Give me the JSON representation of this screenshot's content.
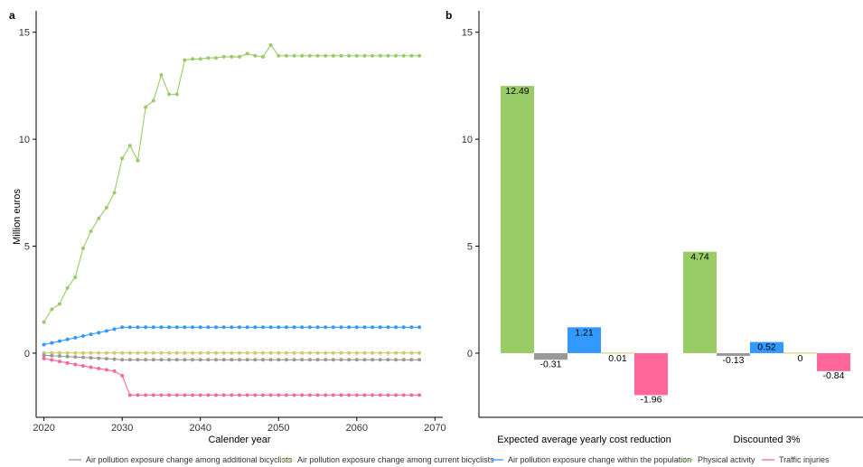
{
  "chart_data": [
    {
      "panel": "a",
      "type": "line",
      "xlabel": "Calender year",
      "ylabel": "Million euros",
      "xlim": [
        2019,
        2071
      ],
      "ylim": [
        -3,
        16
      ],
      "xticks": [
        2020,
        2030,
        2040,
        2050,
        2060,
        2070
      ],
      "yticks": [
        0,
        5,
        10,
        15
      ],
      "x": [
        2020,
        2021,
        2022,
        2023,
        2024,
        2025,
        2026,
        2027,
        2028,
        2029,
        2030,
        2031,
        2032,
        2033,
        2034,
        2035,
        2036,
        2037,
        2038,
        2039,
        2040,
        2041,
        2042,
        2043,
        2044,
        2045,
        2046,
        2047,
        2048,
        2049,
        2050,
        2051,
        2052,
        2053,
        2054,
        2055,
        2056,
        2057,
        2058,
        2059,
        2060,
        2061,
        2062,
        2063,
        2064,
        2065,
        2066,
        2067,
        2068
      ],
      "series": [
        {
          "name": "Physical activity",
          "color": "#99cc66",
          "values": [
            1.45,
            2.05,
            2.3,
            3.05,
            3.55,
            4.9,
            5.7,
            6.3,
            6.8,
            7.5,
            9.1,
            9.7,
            9.0,
            11.5,
            11.8,
            13.0,
            12.1,
            12.1,
            13.7,
            13.75,
            13.75,
            13.8,
            13.8,
            13.85,
            13.85,
            13.85,
            14.0,
            13.9,
            13.85,
            14.4,
            13.9,
            13.9,
            13.9,
            13.9,
            13.9,
            13.9,
            13.9,
            13.9,
            13.9,
            13.9,
            13.9,
            13.9,
            13.9,
            13.9,
            13.9,
            13.9,
            13.9,
            13.9,
            13.9
          ]
        },
        {
          "name": "Air pollution exposure change within the population",
          "color": "#3399ff",
          "values": [
            0.4,
            0.48,
            0.56,
            0.64,
            0.72,
            0.8,
            0.88,
            0.96,
            1.04,
            1.12,
            1.21,
            1.21,
            1.21,
            1.21,
            1.21,
            1.21,
            1.21,
            1.21,
            1.21,
            1.21,
            1.21,
            1.21,
            1.21,
            1.21,
            1.21,
            1.21,
            1.21,
            1.21,
            1.21,
            1.21,
            1.21,
            1.21,
            1.21,
            1.21,
            1.21,
            1.21,
            1.21,
            1.21,
            1.21,
            1.21,
            1.21,
            1.21,
            1.21,
            1.21,
            1.21,
            1.21,
            1.21,
            1.21,
            1.21
          ]
        },
        {
          "name": "Air pollution exposure change among current bicyclists",
          "color": "#cccc66",
          "values": [
            0.01,
            0.01,
            0.01,
            0.01,
            0.01,
            0.01,
            0.01,
            0.01,
            0.01,
            0.01,
            0.01,
            0.01,
            0.01,
            0.01,
            0.01,
            0.01,
            0.01,
            0.01,
            0.01,
            0.01,
            0.01,
            0.01,
            0.01,
            0.01,
            0.01,
            0.01,
            0.01,
            0.01,
            0.01,
            0.01,
            0.01,
            0.01,
            0.01,
            0.01,
            0.01,
            0.01,
            0.01,
            0.01,
            0.01,
            0.01,
            0.01,
            0.01,
            0.01,
            0.01,
            0.01,
            0.01,
            0.01,
            0.01,
            0.01
          ]
        },
        {
          "name": "Air pollution exposure change among additional bicyclists",
          "color": "#999999",
          "values": [
            -0.1,
            -0.12,
            -0.14,
            -0.16,
            -0.18,
            -0.2,
            -0.22,
            -0.24,
            -0.26,
            -0.28,
            -0.31,
            -0.31,
            -0.31,
            -0.31,
            -0.31,
            -0.31,
            -0.31,
            -0.31,
            -0.31,
            -0.31,
            -0.31,
            -0.31,
            -0.31,
            -0.31,
            -0.31,
            -0.31,
            -0.31,
            -0.31,
            -0.31,
            -0.31,
            -0.31,
            -0.31,
            -0.31,
            -0.31,
            -0.31,
            -0.31,
            -0.31,
            -0.31,
            -0.31,
            -0.31,
            -0.31,
            -0.31,
            -0.31,
            -0.31,
            -0.31,
            -0.31,
            -0.31,
            -0.31,
            -0.31
          ]
        },
        {
          "name": "Traffic injuries",
          "color": "#ff6699",
          "values": [
            -0.25,
            -0.32,
            -0.39,
            -0.46,
            -0.53,
            -0.6,
            -0.66,
            -0.72,
            -0.78,
            -0.84,
            -1.05,
            -1.96,
            -1.96,
            -1.96,
            -1.96,
            -1.96,
            -1.96,
            -1.96,
            -1.96,
            -1.96,
            -1.96,
            -1.96,
            -1.96,
            -1.96,
            -1.96,
            -1.96,
            -1.96,
            -1.96,
            -1.96,
            -1.96,
            -1.96,
            -1.96,
            -1.96,
            -1.96,
            -1.96,
            -1.96,
            -1.96,
            -1.96,
            -1.96,
            -1.96,
            -1.96,
            -1.96,
            -1.96,
            -1.96,
            -1.96,
            -1.96,
            -1.96,
            -1.96,
            -1.96
          ]
        }
      ]
    },
    {
      "panel": "b",
      "type": "bar",
      "ylim": [
        -3,
        16
      ],
      "yticks": [
        0,
        5,
        10,
        15
      ],
      "categories": [
        "Expected average yearly cost reduction",
        "Discounted  3%"
      ],
      "series": [
        {
          "name": "Physical activity",
          "color": "#99cc66",
          "values": [
            12.49,
            4.74
          ],
          "labels": [
            "12.49",
            "4.74"
          ]
        },
        {
          "name": "Air pollution exposure change among additional bicyclists",
          "color": "#999999",
          "values": [
            -0.31,
            -0.13
          ],
          "labels": [
            "-0.31",
            "-0.13"
          ]
        },
        {
          "name": "Air pollution exposure change within the population",
          "color": "#3399ff",
          "values": [
            1.21,
            0.52
          ],
          "labels": [
            "1.21",
            "0.52"
          ]
        },
        {
          "name": "Air pollution exposure change among current bicyclists",
          "color": "#cccc66",
          "values": [
            0.01,
            0
          ],
          "labels": [
            "0.01",
            "0"
          ]
        },
        {
          "name": "Traffic injuries",
          "color": "#ff6699",
          "values": [
            -1.96,
            -0.84
          ],
          "labels": [
            "-1.96",
            "-0.84"
          ]
        }
      ]
    }
  ],
  "legend": [
    {
      "label": "Air pollution exposure change among additional bicyclists",
      "color": "#999999"
    },
    {
      "label": "Air pollution exposure change among current bicyclists",
      "color": "#cccc66"
    },
    {
      "label": "Air pollution exposure change within the population",
      "color": "#3399ff"
    },
    {
      "label": "Physical activity",
      "color": "#99cc66"
    },
    {
      "label": "Traffic injuries",
      "color": "#ff6699"
    }
  ],
  "panel_labels": {
    "a": "a",
    "b": "b"
  }
}
